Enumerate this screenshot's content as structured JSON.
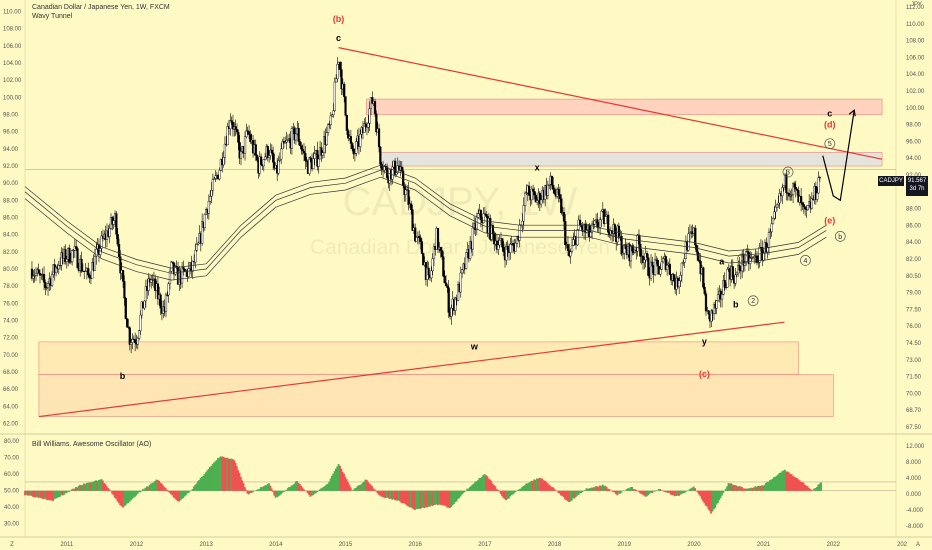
{
  "header": {
    "symbol_title": "Canadian Dollar / Japanese Yen, 1W, FXCM",
    "indicator_name": "Wavy Tunnel",
    "watermark_symbol": "CADJPY, 1W",
    "watermark_name": "Canadian Dollar / Japanese Yen",
    "corner_label": "JPY"
  },
  "price_badge": {
    "symbol": "CADJPY",
    "price": "91.567",
    "countdown": "3d 7h",
    "color": "#131722"
  },
  "oscillator": {
    "title": "Bill Williams. Awesome Oscillator (AO)",
    "rise_color": "#4caf50",
    "fall_color": "#ef5350"
  },
  "axes": {
    "left_price_ticks": [
      "110.00",
      "108.00",
      "106.00",
      "104.00",
      "102.00",
      "100.00",
      "98.00",
      "96.00",
      "94.00",
      "92.00",
      "90.00",
      "88.00",
      "86.00",
      "84.00",
      "82.00",
      "80.00",
      "78.00",
      "76.00",
      "74.00",
      "72.00",
      "70.00",
      "68.00",
      "66.00",
      "64.00",
      "62.00"
    ],
    "right_price_ticks": [
      "112.00",
      "110.00",
      "108.00",
      "106.00",
      "104.00",
      "102.00",
      "100.00",
      "98.00",
      "96.00",
      "94.00",
      "92.00",
      "90.00",
      "88.00",
      "86.00",
      "84.00",
      "82.00",
      "80.50",
      "79.00",
      "77.50",
      "76.00",
      "74.50",
      "73.00",
      "71.50",
      "70.00",
      "68.70",
      "67.50"
    ],
    "left_osc_ticks": [
      "80.00",
      "70.00",
      "60.00",
      "50.00",
      "40.00",
      "30.00"
    ],
    "right_osc_ticks": [
      "12.000",
      "8.000",
      "4.000",
      "0.000",
      "-4.000",
      "-8.000"
    ],
    "time_ticks": [
      "2011",
      "2012",
      "2013",
      "2014",
      "2015",
      "2016",
      "2017",
      "2018",
      "2019",
      "2020",
      "2021",
      "2022",
      "202"
    ],
    "corner_left": "Z",
    "corner_right": "A"
  },
  "chart_data": {
    "type": "candlestick",
    "title": "Canadian Dollar / Japanese Yen, 1W, FXCM",
    "x_range": [
      2010.4,
      2022.9
    ],
    "y_range": [
      61,
      111
    ],
    "close_path": [
      [
        2010.5,
        80
      ],
      [
        2010.7,
        78
      ],
      [
        2010.9,
        81
      ],
      [
        2011.1,
        82
      ],
      [
        2011.3,
        79
      ],
      [
        2011.5,
        83
      ],
      [
        2011.7,
        86
      ],
      [
        2011.8,
        78
      ],
      [
        2011.9,
        72
      ],
      [
        2012.0,
        72
      ],
      [
        2012.1,
        76
      ],
      [
        2012.2,
        79
      ],
      [
        2012.3,
        77
      ],
      [
        2012.4,
        75
      ],
      [
        2012.5,
        80
      ],
      [
        2012.6,
        79
      ],
      [
        2012.8,
        80
      ],
      [
        2012.9,
        83
      ],
      [
        2013.0,
        87
      ],
      [
        2013.2,
        92
      ],
      [
        2013.35,
        98
      ],
      [
        2013.5,
        93
      ],
      [
        2013.6,
        96
      ],
      [
        2013.75,
        92
      ],
      [
        2013.9,
        94
      ],
      [
        2014.0,
        91
      ],
      [
        2014.1,
        94
      ],
      [
        2014.3,
        96
      ],
      [
        2014.45,
        92
      ],
      [
        2014.6,
        93
      ],
      [
        2014.8,
        97
      ],
      [
        2014.9,
        105
      ],
      [
        2015.0,
        98
      ],
      [
        2015.1,
        93
      ],
      [
        2015.25,
        96
      ],
      [
        2015.4,
        100
      ],
      [
        2015.5,
        93
      ],
      [
        2015.6,
        91
      ],
      [
        2015.75,
        92
      ],
      [
        2015.9,
        88
      ],
      [
        2016.0,
        84
      ],
      [
        2016.1,
        82
      ],
      [
        2016.2,
        78
      ],
      [
        2016.3,
        84
      ],
      [
        2016.4,
        80
      ],
      [
        2016.5,
        75
      ],
      [
        2016.6,
        77
      ],
      [
        2016.7,
        80
      ],
      [
        2016.8,
        83
      ],
      [
        2016.9,
        86
      ],
      [
        2017.0,
        86
      ],
      [
        2017.1,
        84
      ],
      [
        2017.3,
        82
      ],
      [
        2017.45,
        83
      ],
      [
        2017.6,
        89
      ],
      [
        2017.75,
        88
      ],
      [
        2017.95,
        90
      ],
      [
        2018.1,
        87
      ],
      [
        2018.2,
        81
      ],
      [
        2018.35,
        85
      ],
      [
        2018.5,
        84
      ],
      [
        2018.7,
        86
      ],
      [
        2018.9,
        84
      ],
      [
        2019.0,
        82
      ],
      [
        2019.1,
        82
      ],
      [
        2019.2,
        83
      ],
      [
        2019.35,
        80
      ],
      [
        2019.5,
        80
      ],
      [
        2019.6,
        81
      ],
      [
        2019.75,
        78
      ],
      [
        2019.9,
        83
      ],
      [
        2020.0,
        84
      ],
      [
        2020.1,
        80
      ],
      [
        2020.2,
        74
      ],
      [
        2020.35,
        76
      ],
      [
        2020.5,
        80
      ],
      [
        2020.6,
        79
      ],
      [
        2020.7,
        81
      ],
      [
        2020.85,
        81
      ],
      [
        2021.0,
        82
      ],
      [
        2021.1,
        84
      ],
      [
        2021.2,
        87
      ],
      [
        2021.3,
        90
      ],
      [
        2021.45,
        89
      ],
      [
        2021.6,
        86
      ],
      [
        2021.75,
        89
      ],
      [
        2021.82,
        91.5
      ]
    ],
    "tunnel_path": [
      [
        2010.4,
        89
      ],
      [
        2011.0,
        85
      ],
      [
        2011.5,
        82
      ],
      [
        2012.0,
        80.5
      ],
      [
        2012.5,
        79.5
      ],
      [
        2013.0,
        80
      ],
      [
        2013.5,
        84.5
      ],
      [
        2014.0,
        88
      ],
      [
        2014.5,
        89.5
      ],
      [
        2015.0,
        90
      ],
      [
        2015.5,
        91.5
      ],
      [
        2016.0,
        90
      ],
      [
        2016.5,
        87
      ],
      [
        2017.0,
        85
      ],
      [
        2017.5,
        84.5
      ],
      [
        2018.0,
        84.5
      ],
      [
        2018.5,
        84.5
      ],
      [
        2019.0,
        83.5
      ],
      [
        2019.5,
        83
      ],
      [
        2020.0,
        82.5
      ],
      [
        2020.5,
        81.5
      ],
      [
        2021.0,
        81.8
      ],
      [
        2021.5,
        82.5
      ],
      [
        2021.9,
        84.5
      ]
    ],
    "trendlines": [
      {
        "from": [
          2014.9,
          105.8
        ],
        "to": [
          2022.7,
          92.8
        ],
        "color": "#e53935"
      },
      {
        "from": [
          2010.6,
          62.8
        ],
        "to": [
          2021.3,
          73.8
        ],
        "color": "#e53935"
      }
    ],
    "zones": [
      {
        "x": [
          2010.6,
          2022.0
        ],
        "y": [
          62.8,
          67.7
        ],
        "color": "#ffe0b2"
      },
      {
        "x": [
          2010.6,
          2021.5
        ],
        "y": [
          67.7,
          71.5
        ],
        "color": "#ffe8b0"
      },
      {
        "x": [
          2015.3,
          2022.7
        ],
        "y": [
          98,
          99.8
        ],
        "color": "#ffccbc"
      },
      {
        "x": [
          2015.5,
          2022.7
        ],
        "y": [
          92,
          93.6
        ],
        "color": "#e0e0e0"
      }
    ],
    "wave_labels": [
      {
        "text": "(b)",
        "x": 2014.9,
        "y": 108.8,
        "color": "#e53935"
      },
      {
        "text": "c",
        "x": 2014.9,
        "y": 106.6,
        "color": "#000000"
      },
      {
        "text": "b",
        "x": 2011.8,
        "y": 67.2,
        "color": "#000000"
      },
      {
        "text": "w",
        "x": 2016.85,
        "y": 70.6,
        "color": "#000000"
      },
      {
        "text": "x",
        "x": 2017.75,
        "y": 91.5,
        "color": "#000000"
      },
      {
        "text": "y",
        "x": 2020.15,
        "y": 71.2,
        "color": "#000000"
      },
      {
        "text": "(c)",
        "x": 2020.15,
        "y": 67.4,
        "color": "#e53935"
      },
      {
        "text": "a",
        "x": 2020.4,
        "y": 80.5,
        "color": "#000000"
      },
      {
        "text": "b",
        "x": 2020.6,
        "y": 75.5,
        "color": "#000000"
      },
      {
        "text": "c",
        "x": 2021.95,
        "y": 97.8,
        "color": "#000000"
      },
      {
        "text": "(d)",
        "x": 2021.95,
        "y": 96.5,
        "color": "#e53935"
      },
      {
        "text": "(e)",
        "x": 2021.95,
        "y": 85.3,
        "color": "#e53935"
      }
    ],
    "circled_labels": [
      {
        "text": "1",
        "x": 2020.7,
        "y": 81.2
      },
      {
        "text": "2",
        "x": 2020.85,
        "y": 76.3
      },
      {
        "text": "3",
        "x": 2021.35,
        "y": 91.3
      },
      {
        "text": "4",
        "x": 2021.6,
        "y": 81.0
      },
      {
        "text": "5",
        "x": 2021.95,
        "y": 94.6
      },
      {
        "text": "b",
        "x": 2022.1,
        "y": 83.8
      }
    ],
    "projection_path": [
      [
        2021.85,
        93.2
      ],
      [
        2022.0,
        88.5
      ],
      [
        2022.1,
        88
      ],
      [
        2022.3,
        98.5
      ]
    ],
    "current_price": 91.567,
    "ao": {
      "y_range": [
        -11.5,
        14
      ],
      "zero_level": 0,
      "points": [
        [
          2010.4,
          -1
        ],
        [
          2010.8,
          -2.5
        ],
        [
          2011.2,
          1.5
        ],
        [
          2011.5,
          3
        ],
        [
          2011.8,
          -4.5
        ],
        [
          2012.0,
          -1
        ],
        [
          2012.3,
          3
        ],
        [
          2012.6,
          -3
        ],
        [
          2012.8,
          0.5
        ],
        [
          2013.0,
          5
        ],
        [
          2013.2,
          9
        ],
        [
          2013.4,
          8
        ],
        [
          2013.6,
          -1
        ],
        [
          2013.9,
          2
        ],
        [
          2014.0,
          -2
        ],
        [
          2014.3,
          2.5
        ],
        [
          2014.5,
          -1.5
        ],
        [
          2014.75,
          2
        ],
        [
          2014.9,
          7
        ],
        [
          2015.1,
          0
        ],
        [
          2015.3,
          3
        ],
        [
          2015.5,
          -1.5
        ],
        [
          2015.75,
          -2.5
        ],
        [
          2016.0,
          -5
        ],
        [
          2016.2,
          -4
        ],
        [
          2016.35,
          -3.5
        ],
        [
          2016.5,
          -4.5
        ],
        [
          2016.75,
          0.5
        ],
        [
          2017.0,
          4.5
        ],
        [
          2017.3,
          -2.5
        ],
        [
          2017.6,
          2
        ],
        [
          2017.8,
          3.5
        ],
        [
          2018.0,
          0.5
        ],
        [
          2018.2,
          -3
        ],
        [
          2018.45,
          0.5
        ],
        [
          2018.7,
          1.5
        ],
        [
          2018.9,
          -1
        ],
        [
          2019.1,
          1
        ],
        [
          2019.3,
          -1.5
        ],
        [
          2019.5,
          0.5
        ],
        [
          2019.75,
          -1.5
        ],
        [
          2020.0,
          1
        ],
        [
          2020.25,
          -6
        ],
        [
          2020.5,
          2
        ],
        [
          2020.75,
          0.5
        ],
        [
          2021.0,
          1.5
        ],
        [
          2021.3,
          5.5
        ],
        [
          2021.5,
          3
        ],
        [
          2021.7,
          0
        ],
        [
          2021.83,
          2.3
        ]
      ]
    }
  }
}
